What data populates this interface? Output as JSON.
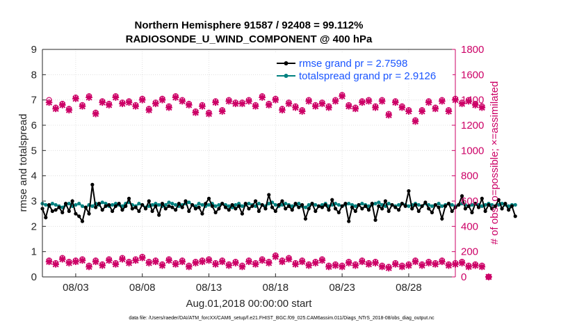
{
  "chart_data": {
    "type": "line",
    "title_line1": "Northern Hemisphere 91587 / 92408 = 99.112%",
    "title_line2": "RADIOSONDE_U_WIND_COMPONENT @ 400 hPa",
    "ylabel_left": "rmse and totalspread",
    "ylabel_right": "# of obs: o=possible; ×=assimilated",
    "xlabel": "Aug.01,2018 00:00:00 start",
    "footnote": "data file: /Users/raeder/DAI/ATM_forcXX/CAM6_setup/f.e21.FHIST_BGC.f09_025.CAM6assim.011/Diags_NTrS_2018-08/obs_diag_output.nc",
    "ylim_left": [
      0,
      9
    ],
    "ylim_right": [
      0,
      1800
    ],
    "xlim": [
      0.5,
      31.5
    ],
    "yticks_left": [
      "0",
      "1",
      "2",
      "3",
      "4",
      "5",
      "6",
      "7",
      "8",
      "9"
    ],
    "yticks_right": [
      "0",
      "200",
      "400",
      "600",
      "800",
      "1000",
      "1200",
      "1400",
      "1600",
      "1800"
    ],
    "xtick_positions": [
      3,
      8,
      13,
      18,
      23,
      28
    ],
    "xtick_labels": [
      "08/03",
      "08/08",
      "08/13",
      "08/18",
      "08/23",
      "08/28"
    ],
    "legend": [
      "rmse grand pr = 2.7598",
      "totalspread grand pr = 2.9126"
    ],
    "colors": {
      "rmse": "#000000",
      "spread": "#00807f",
      "obs": "#cc0066",
      "legend_text": "#1a55ff"
    },
    "x_start": 0.5,
    "x_step": 0.25,
    "series": [
      {
        "name": "rmse",
        "values": [
          2.7,
          2.35,
          2.85,
          2.6,
          2.65,
          2.75,
          2.55,
          2.9,
          2.6,
          3.0,
          2.5,
          2.4,
          2.2,
          2.75,
          2.5,
          3.65,
          2.75,
          2.9,
          2.65,
          2.8,
          2.85,
          2.6,
          2.8,
          2.9,
          2.65,
          2.8,
          3.1,
          2.7,
          2.75,
          2.6,
          2.85,
          2.7,
          3.0,
          2.6,
          2.8,
          2.45,
          2.9,
          2.7,
          2.8,
          2.75,
          2.65,
          2.9,
          2.75,
          3.0,
          2.6,
          2.85,
          2.7,
          2.75,
          2.5,
          2.9,
          3.1,
          2.8,
          2.55,
          2.7,
          2.9,
          2.75,
          2.65,
          2.85,
          2.7,
          2.8,
          2.5,
          2.9,
          2.7,
          2.8,
          3.0,
          2.6,
          2.85,
          2.7,
          3.25,
          2.75,
          2.6,
          2.85,
          3.0,
          2.7,
          2.8,
          2.65,
          2.9,
          2.75,
          2.85,
          2.3,
          2.7,
          2.9,
          2.6,
          2.8,
          2.75,
          2.85,
          2.65,
          3.05,
          2.7,
          2.55,
          2.8,
          2.9,
          2.2,
          2.75,
          2.6,
          2.85,
          2.7,
          2.8,
          2.65,
          2.9,
          2.25,
          2.8,
          2.7,
          3.0,
          2.6,
          2.85,
          2.75,
          2.65,
          2.9,
          2.8,
          3.4,
          2.7,
          2.85,
          2.6,
          2.8,
          2.95,
          2.7,
          2.55,
          2.85,
          2.75,
          2.3,
          2.8,
          2.9,
          2.6,
          2.75,
          2.85,
          3.2,
          2.7,
          2.8,
          2.55,
          2.9,
          2.75,
          3.1,
          2.6,
          2.85,
          2.7,
          2.8,
          3.05,
          2.7,
          2.9,
          2.65,
          2.8,
          2.4
        ]
      },
      {
        "name": "totalspread",
        "values": [
          2.9,
          2.85,
          2.8,
          2.9,
          2.85,
          2.8,
          2.75,
          2.85,
          2.9,
          2.8,
          2.85,
          2.9,
          2.8,
          2.75,
          2.85,
          2.8,
          2.9,
          2.85,
          2.95,
          2.9,
          2.8,
          2.85,
          2.9,
          2.85,
          2.8,
          2.9,
          2.95,
          2.85,
          2.8,
          2.9,
          2.85,
          2.75,
          2.8,
          2.85,
          2.9,
          2.85,
          2.8,
          2.85,
          2.95,
          2.9,
          2.85,
          2.8,
          2.85,
          2.9,
          2.95,
          2.85,
          2.8,
          2.9,
          2.85,
          2.8,
          2.85,
          2.9,
          2.8,
          2.85,
          2.9,
          2.85,
          2.8,
          2.75,
          2.85,
          2.9,
          2.8,
          2.85,
          2.9,
          2.85,
          2.8,
          2.9,
          2.85,
          2.8,
          2.9,
          2.95,
          2.85,
          2.8,
          2.85,
          2.9,
          2.85,
          2.8,
          2.85,
          2.9,
          2.8,
          2.75,
          2.85,
          2.9,
          2.85,
          2.8,
          2.85,
          2.9,
          2.8,
          2.85,
          2.9,
          2.85,
          2.8,
          2.85,
          2.9,
          2.85,
          2.8,
          2.85,
          2.9,
          2.85,
          2.8,
          2.85,
          2.9,
          2.95,
          2.85,
          2.8,
          2.9,
          2.85,
          2.8,
          2.85,
          2.9,
          2.85,
          2.8,
          2.85,
          2.9,
          2.85,
          2.8,
          2.9,
          2.85,
          2.8,
          2.85,
          2.9,
          2.8,
          2.85,
          2.9,
          2.85,
          2.8,
          2.85,
          2.9,
          2.85,
          2.8,
          2.85,
          2.9,
          2.85,
          2.8,
          2.85,
          2.9,
          2.85,
          2.8,
          2.85,
          2.9,
          2.85,
          2.8,
          2.85,
          2.85
        ]
      }
    ],
    "obs_x_start": 1.0,
    "obs_x_step": 0.5,
    "obs_upper_possible": [
      1400,
      1340,
      1370,
      1330,
      1420,
      1360,
      1430,
      1300,
      1390,
      1370,
      1430,
      1380,
      1390,
      1360,
      1410,
      1330,
      1380,
      1410,
      1350,
      1430,
      1400,
      1370,
      1310,
      1360,
      1300,
      1390,
      1320,
      1400,
      1380,
      1380,
      1400,
      1360,
      1430,
      1370,
      1410,
      1330,
      1380,
      1350,
      1320,
      1400,
      1360,
      1380,
      1350,
      1400,
      1440,
      1360,
      1340,
      1390,
      1400,
      1350,
      1400,
      1290,
      1390,
      1350,
      1320,
      1240,
      1320,
      1390,
      1340,
      1400,
      1320,
      1410,
      1380,
      1400,
      1370,
      1350,
      0
    ],
    "obs_upper_assimilated": [
      1380,
      1330,
      1360,
      1320,
      1410,
      1350,
      1420,
      1290,
      1380,
      1360,
      1420,
      1370,
      1380,
      1350,
      1400,
      1320,
      1370,
      1400,
      1340,
      1420,
      1390,
      1360,
      1300,
      1350,
      1290,
      1380,
      1310,
      1390,
      1370,
      1370,
      1390,
      1350,
      1420,
      1360,
      1400,
      1320,
      1370,
      1340,
      1310,
      1390,
      1350,
      1370,
      1340,
      1390,
      1430,
      1350,
      1330,
      1380,
      1390,
      1340,
      1390,
      1280,
      1380,
      1340,
      1310,
      1230,
      1310,
      1380,
      1330,
      1390,
      1310,
      1400,
      1370,
      1390,
      1360,
      1340,
      0
    ],
    "obs_lower_possible": [
      130,
      110,
      150,
      120,
      130,
      140,
      90,
      130,
      100,
      140,
      110,
      150,
      120,
      140,
      160,
      120,
      130,
      100,
      140,
      110,
      130,
      90,
      120,
      130,
      140,
      110,
      130,
      100,
      120,
      90,
      130,
      110,
      140,
      120,
      170,
      130,
      150,
      110,
      130,
      100,
      120,
      140,
      90,
      100,
      90,
      120,
      100,
      130,
      110,
      120,
      90,
      80,
      110,
      90,
      100,
      130,
      100,
      120,
      110,
      130,
      100,
      110,
      120,
      90,
      100,
      90,
      0
    ],
    "obs_lower_assimilated": [
      120,
      100,
      140,
      110,
      120,
      130,
      80,
      120,
      90,
      130,
      100,
      140,
      110,
      130,
      150,
      110,
      120,
      90,
      130,
      100,
      120,
      80,
      110,
      120,
      130,
      100,
      120,
      90,
      110,
      80,
      120,
      100,
      130,
      110,
      160,
      120,
      140,
      100,
      120,
      90,
      110,
      130,
      80,
      90,
      80,
      110,
      90,
      120,
      100,
      110,
      80,
      70,
      100,
      80,
      90,
      120,
      90,
      110,
      100,
      120,
      90,
      100,
      110,
      80,
      90,
      80,
      0
    ]
  }
}
